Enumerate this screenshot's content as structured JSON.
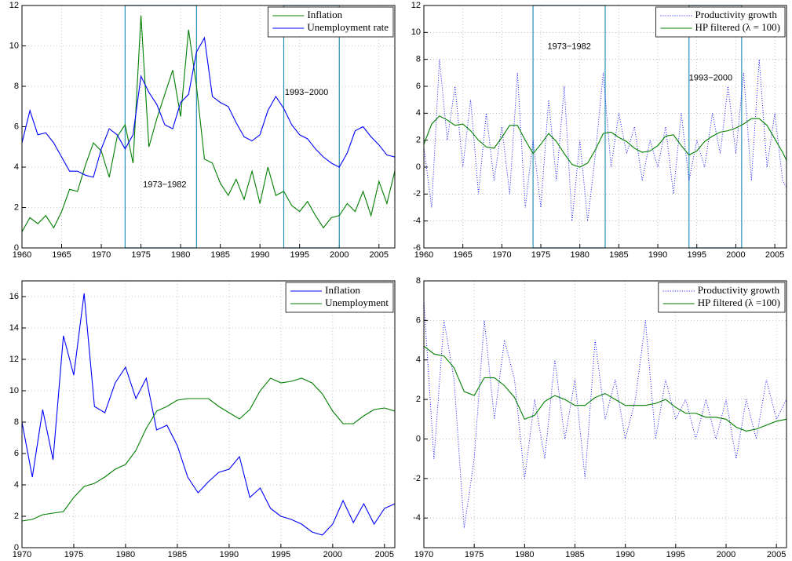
{
  "chart_data": [
    {
      "type": "line",
      "grid": true,
      "legend": "upper right",
      "x": [
        1960,
        1961,
        1962,
        1963,
        1964,
        1965,
        1966,
        1967,
        1968,
        1969,
        1970,
        1971,
        1972,
        1973,
        1974,
        1975,
        1976,
        1977,
        1978,
        1979,
        1980,
        1981,
        1982,
        1983,
        1984,
        1985,
        1986,
        1987,
        1988,
        1989,
        1990,
        1991,
        1992,
        1993,
        1994,
        1995,
        1996,
        1997,
        1998,
        1999,
        2000,
        2001,
        2002,
        2003,
        2004,
        2005,
        2006,
        2007
      ],
      "series": [
        {
          "name": "Inflation",
          "color": "#007f00",
          "line_style": "solid",
          "values": [
            0.8,
            1.5,
            1.2,
            1.6,
            1.0,
            1.8,
            2.9,
            2.8,
            4.1,
            5.2,
            4.8,
            3.5,
            5.5,
            6.1,
            4.2,
            11.5,
            5.0,
            6.4,
            7.6,
            8.8,
            6.5,
            10.8,
            8.0,
            4.4,
            4.2,
            3.2,
            2.6,
            3.4,
            2.4,
            3.8,
            2.2,
            4.0,
            2.6,
            2.8,
            2.1,
            1.8,
            2.3,
            1.6,
            1.0,
            1.5,
            1.6,
            2.2,
            1.8,
            2.8,
            1.6,
            3.3,
            2.2,
            3.8
          ]
        },
        {
          "name": "Unemployment rate",
          "color": "#0000ff",
          "line_style": "solid",
          "values": [
            5.2,
            6.8,
            5.6,
            5.7,
            5.2,
            4.5,
            3.8,
            3.8,
            3.6,
            3.5,
            4.9,
            5.9,
            5.6,
            4.9,
            5.6,
            8.5,
            7.7,
            7.1,
            6.1,
            5.9,
            7.2,
            7.6,
            9.7,
            10.4,
            7.5,
            7.2,
            7.0,
            6.2,
            5.5,
            5.3,
            5.6,
            6.8,
            7.5,
            6.9,
            6.1,
            5.6,
            5.4,
            4.9,
            4.5,
            4.2,
            4.0,
            4.7,
            5.8,
            6.0,
            5.5,
            5.1,
            4.6,
            4.5
          ]
        }
      ],
      "shaded_periods": [
        {
          "start": 1973,
          "end": 1982,
          "label": "1973−1982"
        },
        {
          "start": 1993,
          "end": 2000,
          "label": "1993−2000"
        }
      ],
      "xlim": [
        1960,
        2007
      ],
      "xticks": [
        1960,
        1965,
        1970,
        1975,
        1980,
        1985,
        1990,
        1995,
        2000,
        2005
      ],
      "ylim": [
        0,
        12
      ],
      "yticks": [
        0,
        2,
        4,
        6,
        8,
        10,
        12
      ]
    },
    {
      "type": "line",
      "grid": true,
      "legend": "upper right",
      "x": [
        1960,
        1961,
        1962,
        1963,
        1964,
        1965,
        1966,
        1967,
        1968,
        1969,
        1970,
        1971,
        1972,
        1973,
        1974,
        1975,
        1976,
        1977,
        1978,
        1979,
        1980,
        1981,
        1982,
        1983,
        1984,
        1985,
        1986,
        1987,
        1988,
        1989,
        1990,
        1991,
        1992,
        1993,
        1994,
        1995,
        1996,
        1997,
        1998,
        1999,
        2000,
        2001,
        2002,
        2003,
        2004,
        2005,
        2006,
        2007
      ],
      "series": [
        {
          "name": "Productivity growth",
          "color": "#0000ff",
          "line_style": "dotted",
          "values": [
            1.5,
            -3,
            8,
            2,
            6,
            0,
            5,
            -2,
            4,
            -1,
            3,
            -2,
            7,
            -3,
            2,
            -3,
            5,
            -1,
            6,
            -4,
            2,
            -4,
            1,
            7,
            0,
            4,
            1,
            3,
            -1,
            2,
            0,
            3,
            -2,
            4,
            -1,
            2,
            0,
            4,
            1,
            6,
            1,
            7,
            -1,
            8,
            0,
            4,
            -1,
            -2
          ]
        },
        {
          "name": "HP filtered (λ = 100)",
          "color": "#007f00",
          "line_style": "solid",
          "values": [
            1.7,
            3.2,
            3.8,
            3.5,
            3.1,
            3.2,
            2.7,
            2.0,
            1.5,
            1.4,
            2.2,
            3.1,
            3.1,
            2.0,
            1.0,
            1.7,
            2.5,
            1.9,
            1.0,
            0.2,
            0.0,
            0.3,
            1.3,
            2.5,
            2.6,
            2.2,
            1.9,
            1.4,
            1.1,
            1.2,
            1.6,
            2.3,
            2.4,
            1.6,
            0.9,
            1.2,
            1.9,
            2.3,
            2.6,
            2.7,
            2.9,
            3.2,
            3.6,
            3.6,
            3.1,
            2.1,
            1.1,
            -0.1
          ]
        }
      ],
      "shaded_periods": [
        {
          "start": 1974,
          "end": 1983.25,
          "label": "1973−1982"
        },
        {
          "start": 1994,
          "end": 2000.75,
          "label": "1993−2000"
        }
      ],
      "xlim": [
        1960,
        2006.5
      ],
      "xticks": [
        1960,
        1965,
        1970,
        1975,
        1980,
        1985,
        1990,
        1995,
        2000,
        2005
      ],
      "ylim": [
        -6,
        12
      ],
      "yticks": [
        -6,
        -4,
        -2,
        0,
        2,
        4,
        6,
        8,
        10,
        12
      ]
    },
    {
      "type": "line",
      "grid": true,
      "legend": "upper right",
      "x": [
        1970,
        1971,
        1972,
        1973,
        1974,
        1975,
        1976,
        1977,
        1978,
        1979,
        1980,
        1981,
        1982,
        1983,
        1984,
        1985,
        1986,
        1987,
        1988,
        1989,
        1990,
        1991,
        1992,
        1993,
        1994,
        1995,
        1996,
        1997,
        1998,
        1999,
        2000,
        2001,
        2002,
        2003,
        2004,
        2005,
        2006
      ],
      "series": [
        {
          "name": "Inflation",
          "color": "#0000ff",
          "line_style": "solid",
          "values": [
            8.0,
            4.5,
            8.8,
            5.6,
            13.5,
            11.0,
            16.2,
            9.0,
            8.6,
            10.5,
            11.5,
            9.5,
            10.8,
            7.5,
            7.8,
            6.5,
            4.5,
            3.5,
            4.2,
            4.8,
            5.0,
            5.8,
            3.2,
            3.8,
            2.5,
            2.0,
            1.8,
            1.5,
            1.0,
            0.8,
            1.5,
            3.0,
            1.6,
            2.8,
            1.5,
            2.5,
            2.8
          ]
        },
        {
          "name": "Unemployment",
          "color": "#007f00",
          "line_style": "solid",
          "values": [
            1.7,
            1.8,
            2.1,
            2.2,
            2.3,
            3.2,
            3.9,
            4.1,
            4.5,
            5.0,
            5.3,
            6.2,
            7.6,
            8.7,
            9.0,
            9.4,
            9.5,
            9.5,
            9.5,
            9.0,
            8.6,
            8.2,
            8.8,
            10.0,
            10.8,
            10.5,
            10.6,
            10.8,
            10.5,
            9.8,
            8.7,
            7.9,
            7.9,
            8.4,
            8.8,
            8.9,
            8.7
          ]
        }
      ],
      "xlim": [
        1970,
        2006
      ],
      "xticks": [
        1970,
        1975,
        1980,
        1985,
        1990,
        1995,
        2000,
        2005
      ],
      "ylim": [
        0,
        17
      ],
      "yticks": [
        0,
        2,
        4,
        6,
        8,
        10,
        12,
        14,
        16
      ]
    },
    {
      "type": "line",
      "grid": true,
      "legend": "upper right",
      "x": [
        1970,
        1971,
        1972,
        1973,
        1974,
        1975,
        1976,
        1977,
        1978,
        1979,
        1980,
        1981,
        1982,
        1983,
        1984,
        1985,
        1986,
        1987,
        1988,
        1989,
        1990,
        1991,
        1992,
        1993,
        1994,
        1995,
        1996,
        1997,
        1998,
        1999,
        2000,
        2001,
        2002,
        2003,
        2004,
        2005,
        2006
      ],
      "series": [
        {
          "name": "Productivity growth",
          "color": "#0000ff",
          "line_style": "dotted",
          "values": [
            7,
            -1,
            6,
            3,
            -4.5,
            -1,
            6,
            1,
            5,
            3,
            -2,
            2,
            -1,
            4,
            0,
            3,
            -2,
            5,
            1,
            3,
            0,
            2,
            6,
            0,
            3,
            1,
            2,
            0,
            2,
            0,
            2,
            -1,
            2,
            0,
            3,
            1,
            2
          ]
        },
        {
          "name": "HP filtered (λ =100)",
          "color": "#007f00",
          "line_style": "solid",
          "values": [
            4.7,
            4.3,
            4.2,
            3.6,
            2.4,
            2.2,
            3.1,
            3.1,
            2.7,
            2.1,
            1.0,
            1.2,
            1.9,
            2.2,
            2.0,
            1.7,
            1.7,
            2.1,
            2.3,
            2.0,
            1.7,
            1.7,
            1.7,
            1.8,
            2.0,
            1.6,
            1.3,
            1.3,
            1.1,
            1.1,
            1.0,
            0.6,
            0.4,
            0.5,
            0.7,
            0.9,
            1.0
          ]
        }
      ],
      "xlim": [
        1970,
        2006
      ],
      "xticks": [
        1970,
        1975,
        1980,
        1985,
        1990,
        1995,
        2000,
        2005
      ],
      "ylim": [
        -5.5,
        8
      ],
      "yticks": [
        -4,
        -2,
        0,
        2,
        4,
        6,
        8
      ]
    }
  ]
}
